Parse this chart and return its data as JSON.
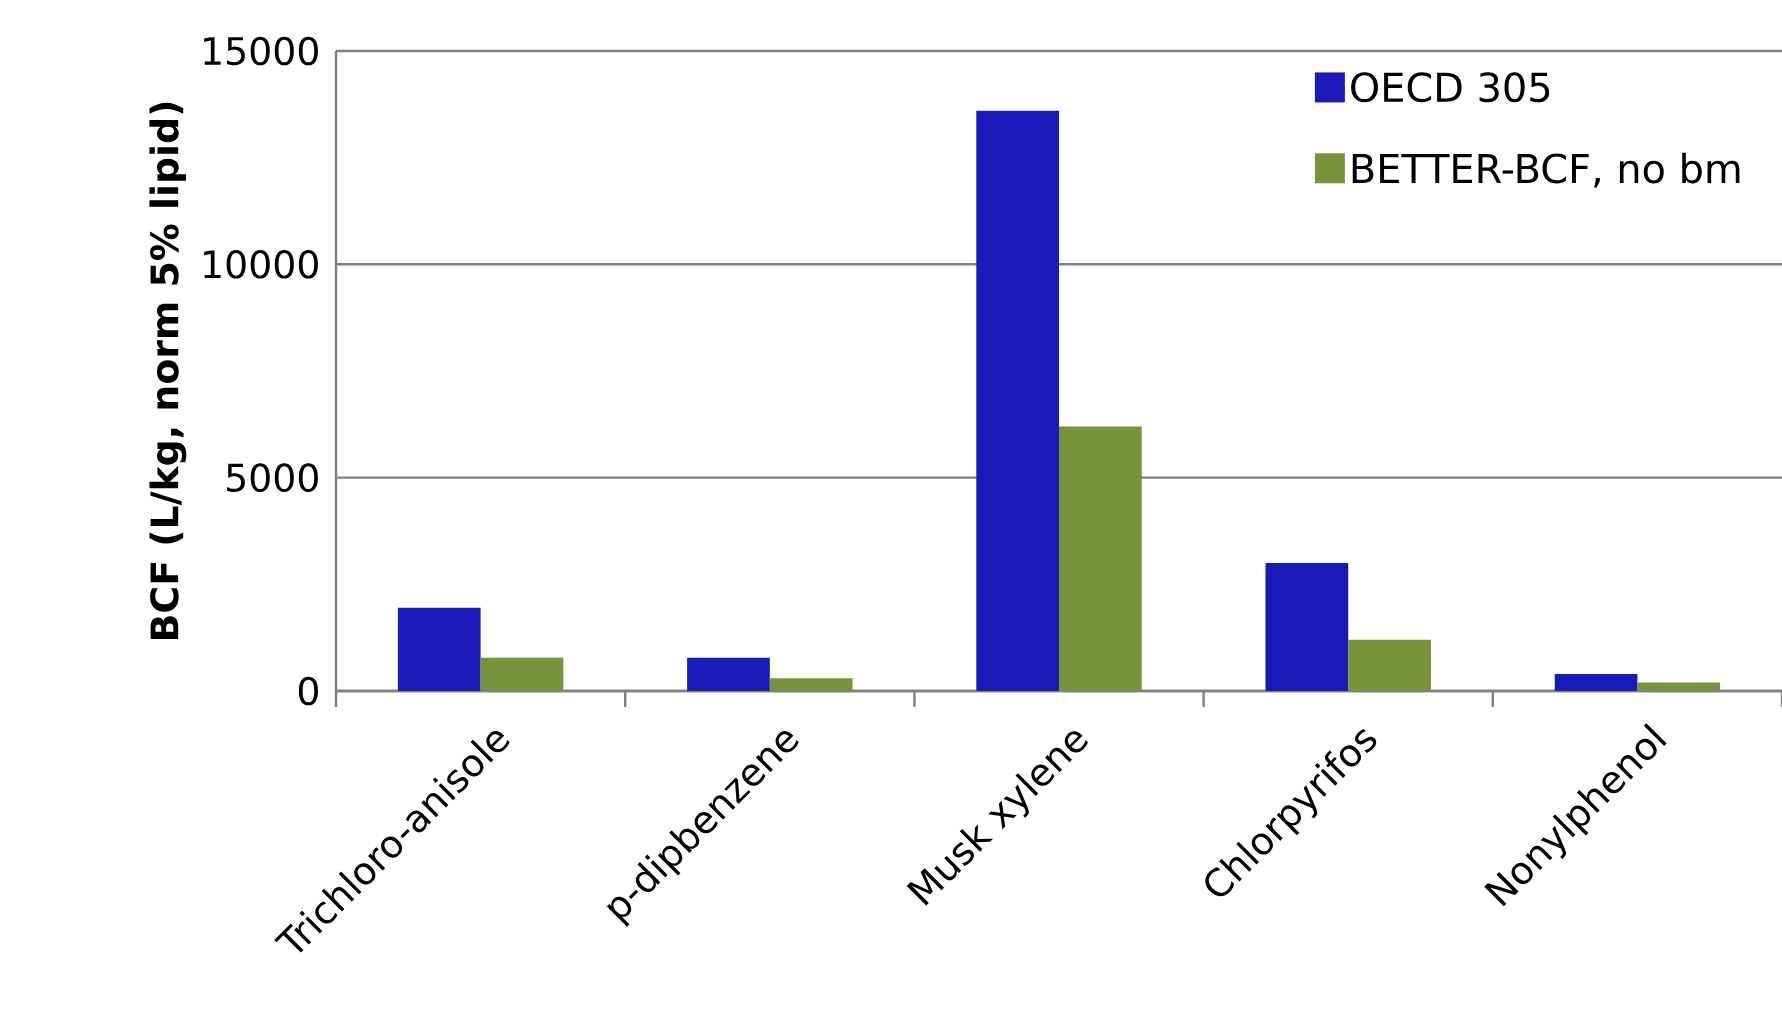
{
  "chart_data": {
    "type": "bar",
    "ylabel": "BCF (L/kg, norm 5% lipid)",
    "categories": [
      "Trichloro-anisole",
      "p-dipbenzene",
      "Musk xylene",
      "Chlorpyrifos",
      "Nonylphenol"
    ],
    "series": [
      {
        "name": "OECD 305",
        "color": "#1a1ab8",
        "values": [
          1950,
          780,
          13600,
          3000,
          400
        ]
      },
      {
        "name": "BETTER-BCF, no bm",
        "color": "#77933c",
        "values": [
          780,
          300,
          6200,
          1200,
          200
        ]
      }
    ],
    "ylim": [
      0,
      15000
    ],
    "yticks": [
      0,
      5000,
      10000,
      15000
    ],
    "grid": "y",
    "legend": "top right"
  }
}
